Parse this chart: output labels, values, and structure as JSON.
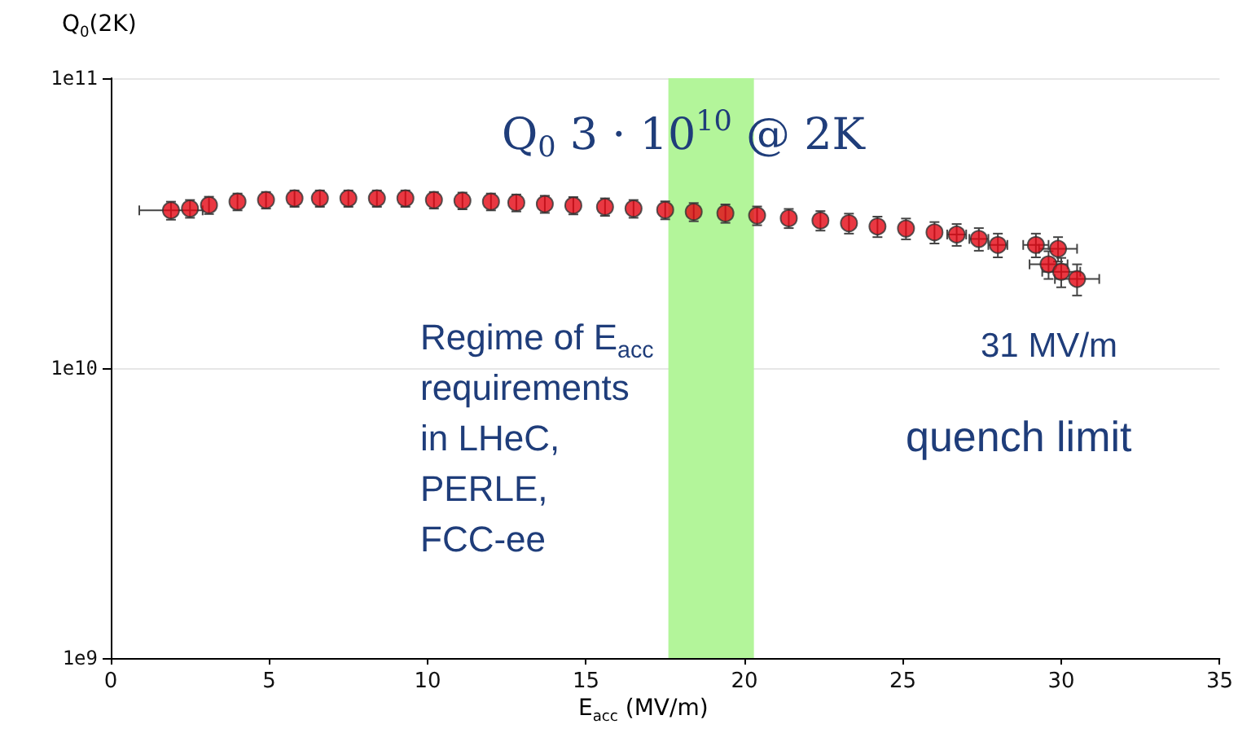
{
  "chart_data": {
    "type": "scatter",
    "xlabel": "E$_{acc}$ (MV/m)",
    "ylabel": "Q$_{0}$(2K)",
    "annotations": [
      "Q$_{0}$ 3 · 10$^{10}$ @ 2K",
      "Regime of E$_{acc}$\nrequirements\nin LHeC,\nPERLE,\nFCC-ee",
      "31 MV/m",
      "quench limit"
    ],
    "x": [
      1.9,
      2.5,
      3.1,
      4.0,
      4.9,
      5.8,
      6.6,
      7.5,
      8.4,
      9.3,
      10.2,
      11.1,
      12.0,
      12.8,
      13.7,
      14.6,
      15.6,
      16.5,
      17.5,
      18.4,
      19.4,
      20.4,
      21.4,
      22.4,
      23.3,
      24.2,
      25.1,
      26.0,
      26.7,
      27.4,
      28.0,
      29.2,
      29.9,
      29.6,
      30.0,
      30.5
    ],
    "series": [
      {
        "color": "#e30613",
        "values": [
          35000000000,
          35500000000,
          36500000000,
          37500000000,
          38000000000,
          38500000000,
          38500000000,
          38500000000,
          38500000000,
          38500000000,
          38000000000,
          37800000000,
          37500000000,
          37200000000,
          36800000000,
          36400000000,
          36000000000,
          35500000000,
          35100000000,
          34600000000,
          34200000000,
          33600000000,
          32900000000,
          32300000000,
          31600000000,
          30800000000,
          30300000000,
          29400000000,
          28900000000,
          27900000000,
          26600000000,
          26600000000,
          25800000000,
          22800000000,
          21500000000,
          20300000000
        ],
        "errors": [
          2500000000,
          2500000000,
          2500000000,
          2500000000,
          2500000000,
          2500000000,
          2500000000,
          2500000000,
          2500000000,
          2500000000,
          2500000000,
          2500000000,
          2500000000,
          2500000000,
          2500000000,
          2500000000,
          2500000000,
          2500000000,
          2500000000,
          2500000000,
          2500000000,
          2500000000,
          2500000000,
          2500000000,
          2500000000,
          2500000000,
          2500000000,
          2500000000,
          2500000000,
          2500000000,
          2500000000,
          2500000000,
          2500000000,
          2500000000,
          2500000000,
          2500000000
        ],
        "xerrors": [
          1.0,
          null,
          null,
          null,
          null,
          null,
          null,
          null,
          null,
          null,
          null,
          null,
          null,
          null,
          null,
          null,
          null,
          null,
          null,
          null,
          null,
          null,
          null,
          null,
          null,
          null,
          null,
          null,
          0.3,
          0.3,
          0.3,
          0.4,
          0.6,
          0.6,
          0.6,
          0.7
        ]
      }
    ],
    "xlim": [
      0,
      35
    ],
    "xticks": [
      0,
      5,
      10,
      15,
      20,
      25,
      30,
      35
    ],
    "ylim": [
      1000000000,
      100000000000
    ],
    "yticks": [
      {
        "value": 1000000000,
        "label": "1e9"
      },
      {
        "value": 10000000000,
        "label": "1e10"
      },
      {
        "value": 100000000000,
        "label": "1e11"
      }
    ],
    "log": "y",
    "grid": "y",
    "marker": "circle",
    "bands": [
      {
        "axis": "x",
        "from": 17.6,
        "to": 20.3,
        "color": "#b3f59a"
      }
    ]
  }
}
